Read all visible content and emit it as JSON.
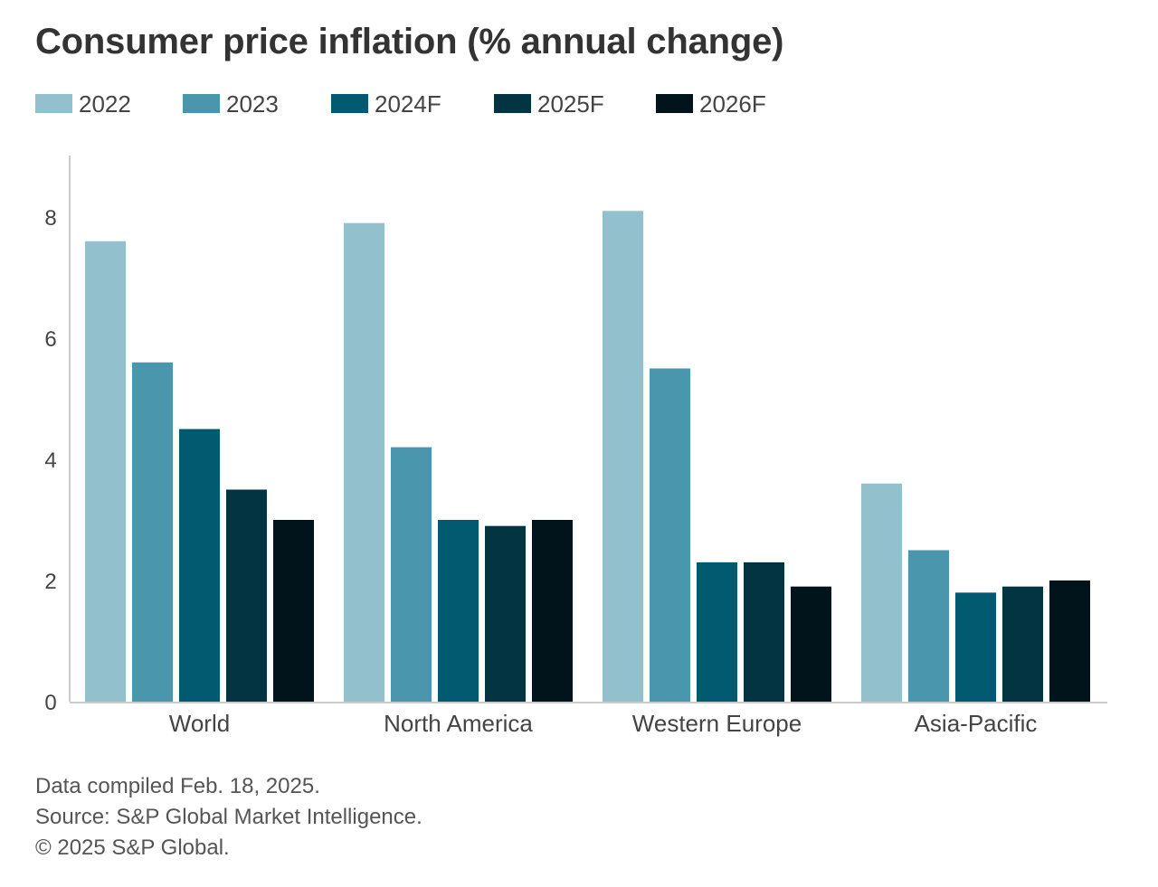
{
  "title": "Consumer price inflation (% annual change)",
  "colors": {
    "2022": "#93c0cd",
    "2023": "#4a97ad",
    "2024F": "#025a70",
    "2025F": "#033441",
    "2026F": "#01141c",
    "axis": "#cccccc",
    "text": "#444444"
  },
  "chart_data": {
    "type": "bar",
    "title": "Consumer price inflation (% annual change)",
    "categories": [
      "World",
      "North America",
      "Western Europe",
      "Asia-Pacific"
    ],
    "series": [
      {
        "name": "2022",
        "values": [
          7.6,
          7.9,
          8.1,
          3.6
        ]
      },
      {
        "name": "2023",
        "values": [
          5.6,
          4.2,
          5.5,
          2.5
        ]
      },
      {
        "name": "2024F",
        "values": [
          4.5,
          3.0,
          2.3,
          1.8
        ]
      },
      {
        "name": "2025F",
        "values": [
          3.5,
          2.9,
          2.3,
          1.9
        ]
      },
      {
        "name": "2026F",
        "values": [
          3.0,
          3.0,
          1.9,
          2.0
        ]
      }
    ],
    "yticks": [
      0,
      2,
      4,
      6,
      8
    ],
    "ylim": [
      0,
      9
    ],
    "xlabel": "",
    "ylabel": "",
    "legend": "top-left",
    "grid": false
  },
  "footer": {
    "line1": "Data compiled Feb. 18, 2025.",
    "line2": "Source: S&P Global Market Intelligence.",
    "line3": "© 2025 S&P Global."
  }
}
